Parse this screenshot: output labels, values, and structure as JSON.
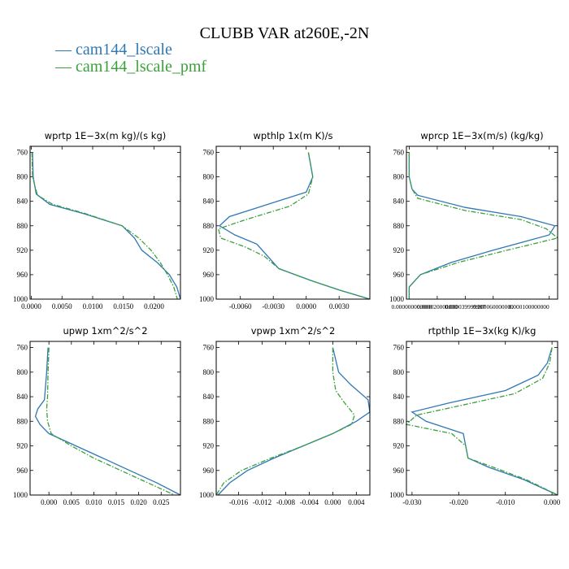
{
  "title": "CLUBB VAR at260E,-2N",
  "legend": [
    {
      "label": "cam144_lscale",
      "color": "#2f78b4",
      "dash": "solid"
    },
    {
      "label": "cam144_lscale_pmf",
      "color": "#3aa13a",
      "dash": "dashdot"
    }
  ],
  "chart_data": [
    {
      "type": "line",
      "title": "wprtp   1E−3x(m kg)/(s kg)",
      "xlim": [
        -0.0002,
        0.0243
      ],
      "ylim": [
        1000,
        750
      ],
      "xticks": [
        0.0,
        0.005,
        0.01,
        0.015,
        0.02
      ],
      "xtick_labels": [
        "0.0000",
        "0.0050",
        "0.0100",
        "0.0150",
        "0.0200"
      ],
      "yticks": [
        760,
        800,
        840,
        880,
        920,
        960,
        1000
      ],
      "ytick_labels": [
        "760",
        "800",
        "840",
        "880",
        "920",
        "960",
        "1000"
      ],
      "series": [
        {
          "name": "cam144_lscale",
          "y": [
            760,
            800,
            828,
            845,
            860,
            880,
            900,
            920,
            940,
            960,
            980,
            1000
          ],
          "x": [
            0.0002,
            0.0003,
            0.0008,
            0.003,
            0.0085,
            0.0148,
            0.0168,
            0.018,
            0.0205,
            0.0225,
            0.0237,
            0.0243
          ]
        },
        {
          "name": "cam144_lscale_pmf",
          "y": [
            760,
            800,
            830,
            845,
            860,
            880,
            900,
            920,
            940,
            960,
            980,
            1000
          ],
          "x": [
            0.0001,
            0.0002,
            0.001,
            0.0035,
            0.0088,
            0.0148,
            0.0175,
            0.0195,
            0.021,
            0.0222,
            0.0232,
            0.0238
          ]
        }
      ]
    },
    {
      "type": "line",
      "title": "wpthlp   1x(m K)/s",
      "xlim": [
        -0.0082,
        0.0058
      ],
      "ylim": [
        1000,
        750
      ],
      "xticks": [
        -0.006,
        -0.003,
        0.0,
        0.003
      ],
      "xtick_labels": [
        "-0.0060",
        "-0.0030",
        "0.0000",
        "0.0030"
      ],
      "yticks": [
        760,
        800,
        840,
        880,
        920,
        960,
        1000
      ],
      "ytick_labels": [
        "760",
        "800",
        "840",
        "880",
        "920",
        "960",
        "1000"
      ],
      "series": [
        {
          "name": "cam144_lscale",
          "y": [
            760,
            800,
            825,
            845,
            865,
            880,
            895,
            910,
            930,
            950,
            970,
            985,
            1000
          ],
          "x": [
            0.0002,
            0.0006,
            0.0,
            -0.0035,
            -0.007,
            -0.0079,
            -0.0065,
            -0.0045,
            -0.0035,
            -0.0025,
            0.0005,
            0.003,
            0.0058
          ]
        },
        {
          "name": "cam144_lscale_pmf",
          "y": [
            760,
            800,
            828,
            848,
            870,
            885,
            900,
            915,
            930,
            950,
            970,
            985,
            1000
          ],
          "x": [
            0.0002,
            0.0006,
            0.0002,
            -0.0015,
            -0.0055,
            -0.008,
            -0.0078,
            -0.0055,
            -0.0038,
            -0.0025,
            0.0005,
            0.003,
            0.0058
          ]
        }
      ]
    },
    {
      "type": "line",
      "title": "wprcp   1E−3x(m/s) (kg/kg)",
      "xlim": [
        -2e-06,
        0.000106
      ],
      "ylim": [
        1000,
        750
      ],
      "xticks": [
        0.0,
        2e-05,
        4e-05,
        6e-05,
        0.0001
      ],
      "xtick_labels": [
        "0.000000000000",
        "0.000020000000",
        "0.000039999997",
        "0.000060000000",
        "0.000100000000"
      ],
      "yticks": [
        760,
        800,
        840,
        880,
        920,
        960,
        1000
      ],
      "ytick_labels": [
        "760",
        "800",
        "840",
        "880",
        "920",
        "960",
        "1000"
      ],
      "series": [
        {
          "name": "cam144_lscale",
          "y": [
            760,
            800,
            820,
            830,
            850,
            865,
            880,
            895,
            920,
            940,
            960,
            980,
            1000
          ],
          "x": [
            0.0,
            0.0,
            2e-06,
            6e-06,
            4e-05,
            8e-05,
            0.000104,
            0.0001,
            6e-05,
            3e-05,
            8e-06,
            0.0,
            0.0
          ]
        },
        {
          "name": "cam144_lscale_pmf",
          "y": [
            760,
            800,
            820,
            835,
            855,
            870,
            885,
            900,
            920,
            940,
            960,
            980,
            1000
          ],
          "x": [
            0.0,
            0.0,
            2e-06,
            6e-06,
            4e-05,
            8e-05,
            9.8e-05,
            0.000106,
            7e-05,
            3.5e-05,
            8e-06,
            0.0,
            0.0
          ]
        }
      ]
    },
    {
      "type": "line",
      "title": "upwp   1xm^2/s^2",
      "xlim": [
        -0.0042,
        0.0293
      ],
      "ylim": [
        1000,
        750
      ],
      "xticks": [
        0.0,
        0.005,
        0.01,
        0.015,
        0.02,
        0.025
      ],
      "xtick_labels": [
        "0.000",
        "0.005",
        "0.010",
        "0.015",
        "0.020",
        "0.025"
      ],
      "yticks": [
        760,
        800,
        840,
        880,
        920,
        960,
        1000
      ],
      "ytick_labels": [
        "760",
        "800",
        "840",
        "880",
        "920",
        "960",
        "1000"
      ],
      "series": [
        {
          "name": "cam144_lscale",
          "y": [
            760,
            800,
            845,
            860,
            872,
            885,
            900,
            920,
            940,
            960,
            980,
            1000
          ],
          "x": [
            -0.0002,
            -0.0005,
            -0.001,
            -0.0025,
            -0.003,
            -0.002,
            0.0,
            0.006,
            0.012,
            0.018,
            0.024,
            0.0293
          ]
        },
        {
          "name": "cam144_lscale_pmf",
          "y": [
            760,
            800,
            840,
            860,
            880,
            900,
            920,
            940,
            960,
            980,
            1000
          ],
          "x": [
            0.0,
            -0.0002,
            -0.0003,
            -0.0005,
            -0.0003,
            0.0005,
            0.005,
            0.01,
            0.016,
            0.022,
            0.028
          ]
        }
      ]
    },
    {
      "type": "line",
      "title": "vpwp   1xm^2/s^2",
      "xlim": [
        -0.0198,
        0.0063
      ],
      "ylim": [
        1000,
        750
      ],
      "xticks": [
        -0.016,
        -0.012,
        -0.008,
        -0.004,
        0.0,
        0.004
      ],
      "xtick_labels": [
        "-0.016",
        "-0.012",
        "-0.008",
        "-0.004",
        "0.000",
        "0.004"
      ],
      "yticks": [
        760,
        800,
        840,
        880,
        920,
        960,
        1000
      ],
      "ytick_labels": [
        "760",
        "800",
        "840",
        "880",
        "920",
        "960",
        "1000"
      ],
      "series": [
        {
          "name": "cam144_lscale",
          "y": [
            760,
            800,
            820,
            845,
            865,
            880,
            900,
            920,
            940,
            960,
            980,
            1000
          ],
          "x": [
            0.0,
            0.001,
            0.003,
            0.006,
            0.0063,
            0.004,
            0.0,
            -0.005,
            -0.01,
            -0.0145,
            -0.0175,
            -0.0195
          ]
        },
        {
          "name": "cam144_lscale_pmf",
          "y": [
            760,
            800,
            830,
            850,
            870,
            885,
            900,
            920,
            940,
            960,
            980,
            1000
          ],
          "x": [
            0.0,
            0.0,
            0.0005,
            0.002,
            0.0037,
            0.0032,
            0.0,
            -0.005,
            -0.0105,
            -0.0155,
            -0.0185,
            -0.0198
          ]
        }
      ]
    },
    {
      "type": "line",
      "title": "rtpthlp   1E−3x(kg K)/kg",
      "xlim": [
        -0.0312,
        0.0012
      ],
      "ylim": [
        1000,
        750
      ],
      "xticks": [
        -0.03,
        -0.02,
        -0.01,
        0.0
      ],
      "xtick_labels": [
        "-0.030",
        "-0.020",
        "-0.010",
        "0.000"
      ],
      "yticks": [
        760,
        800,
        840,
        880,
        920,
        960,
        1000
      ],
      "ytick_labels": [
        "760",
        "800",
        "840",
        "880",
        "920",
        "960",
        "1000"
      ],
      "series": [
        {
          "name": "cam144_lscale",
          "y": [
            760,
            785,
            805,
            830,
            850,
            865,
            880,
            900,
            920,
            940,
            955,
            975,
            1000
          ],
          "x": [
            0.0,
            -0.001,
            -0.003,
            -0.01,
            -0.022,
            -0.03,
            -0.027,
            -0.019,
            -0.0185,
            -0.018,
            -0.0135,
            -0.006,
            0.0012
          ]
        },
        {
          "name": "cam144_lscale_pmf",
          "y": [
            760,
            785,
            810,
            835,
            855,
            870,
            885,
            900,
            920,
            940,
            955,
            975,
            1000
          ],
          "x": [
            0.0,
            -0.0005,
            -0.002,
            -0.008,
            -0.02,
            -0.029,
            -0.0312,
            -0.0215,
            -0.0185,
            -0.018,
            -0.0125,
            -0.0055,
            0.0012
          ]
        }
      ]
    }
  ]
}
